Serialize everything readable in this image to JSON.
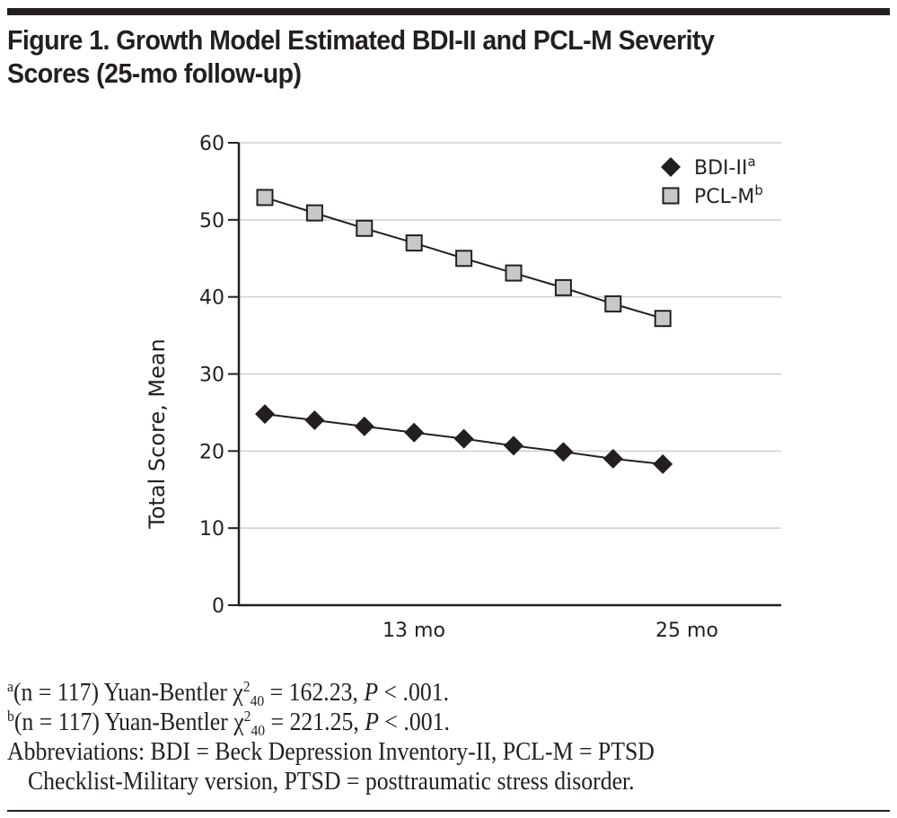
{
  "figure": {
    "title_line1": "Figure 1. Growth Model Estimated BDI-II and PCL-M Severity",
    "title_line2": "Scores (25-mo follow-up)"
  },
  "chart_data": {
    "type": "line",
    "title": "Figure 1. Growth Model Estimated BDI-II and PCL-M Severity Scores (25-mo follow-up)",
    "xlabel": "",
    "ylabel": "Total Score, Mean",
    "x": [
      1,
      4,
      7,
      10,
      13,
      16,
      19,
      22,
      25
    ],
    "x_unit": "mo",
    "x_ticks": [
      {
        "value": 13,
        "label": "13 mo"
      },
      {
        "value": 25,
        "label": "25 mo"
      }
    ],
    "ylim": [
      0,
      60
    ],
    "y_ticks": [
      0,
      10,
      20,
      30,
      40,
      50,
      60
    ],
    "grid": "horizontal",
    "legend_position": "top-right",
    "series": [
      {
        "name": "BDI-II",
        "superscript": "a",
        "marker": "diamond",
        "color": "#231f20",
        "values": [
          24.8,
          24.0,
          23.2,
          22.4,
          21.6,
          20.7,
          19.9,
          19.0,
          18.3
        ]
      },
      {
        "name": "PCL-M",
        "superscript": "b",
        "marker": "square",
        "color": "#c8c8c8",
        "values": [
          52.9,
          50.9,
          48.9,
          47.0,
          45.0,
          43.1,
          41.2,
          39.1,
          37.2
        ]
      }
    ]
  },
  "notes": {
    "a": {
      "mark": "a",
      "pre": "(n = 117) Yuan-Bentler χ",
      "sup": "2",
      "sub": "40",
      "post1": " = 162.23, ",
      "p": "P",
      "post2": " < .001."
    },
    "b": {
      "mark": "b",
      "pre": "(n = 117) Yuan-Bentler χ",
      "sup": "2",
      "sub": "40",
      "post1": " = 221.25, ",
      "p": "P",
      "post2": " < .001."
    },
    "abbrev_line1": "Abbreviations: BDI = Beck Depression Inventory-II, PCL-M = PTSD",
    "abbrev_line2": "Checklist-Military version, PTSD = posttraumatic stress disorder."
  }
}
